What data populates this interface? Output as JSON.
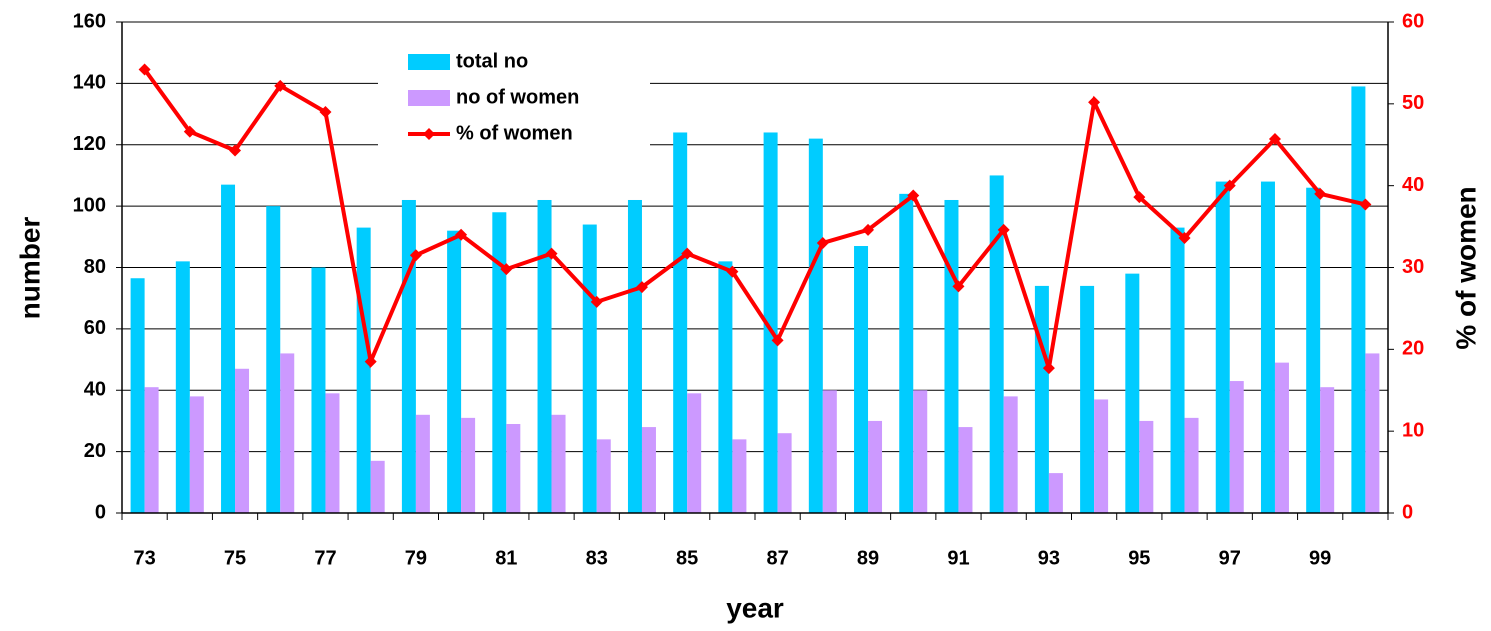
{
  "chart_data": {
    "type": "bar_line",
    "xlabel": "year",
    "ylabel": "number",
    "y2label": "% of women",
    "categories": [
      "73",
      null,
      "75",
      null,
      "77",
      null,
      "79",
      null,
      "81",
      null,
      "83",
      null,
      "85",
      null,
      "87",
      null,
      "89",
      null,
      "91",
      null,
      "93",
      null,
      "95",
      null,
      "97",
      null,
      "99",
      null
    ],
    "series": [
      {
        "name": "total no",
        "type": "bar",
        "color": "#00ccff",
        "values": [
          76.5,
          82,
          107,
          100,
          80,
          93,
          102,
          92,
          98,
          102,
          94,
          102,
          124,
          82,
          124,
          122,
          87,
          104,
          102,
          110,
          74,
          74,
          78,
          93,
          108,
          108,
          106,
          139
        ]
      },
      {
        "name": "no of women",
        "type": "bar",
        "color": "#cc99ff",
        "values": [
          41,
          38,
          47,
          52,
          39,
          17,
          32,
          31,
          29,
          32,
          24,
          28,
          39,
          24,
          26,
          40,
          30,
          40,
          28,
          38,
          13,
          37,
          30,
          31,
          43,
          49,
          41,
          52
        ]
      },
      {
        "name": "% of women",
        "type": "line",
        "axis": "y2",
        "color": "#ff0000",
        "values": [
          54.2,
          46.6,
          44.3,
          52.2,
          49,
          18.5,
          31.5,
          34,
          29.8,
          31.7,
          25.8,
          27.6,
          31.7,
          29.5,
          21.1,
          33,
          34.6,
          38.8,
          27.7,
          34.6,
          17.7,
          50.2,
          38.6,
          33.6,
          40,
          45.7,
          39,
          37.7
        ]
      }
    ],
    "ylim": [
      0,
      160
    ],
    "yticks": [
      0,
      20,
      40,
      60,
      80,
      100,
      120,
      140,
      160
    ],
    "y2lim": [
      0,
      60
    ],
    "y2ticks": [
      0,
      10,
      20,
      30,
      40,
      50,
      60
    ],
    "y2color": "#ff0000",
    "grid": true,
    "legend": "upper left"
  }
}
